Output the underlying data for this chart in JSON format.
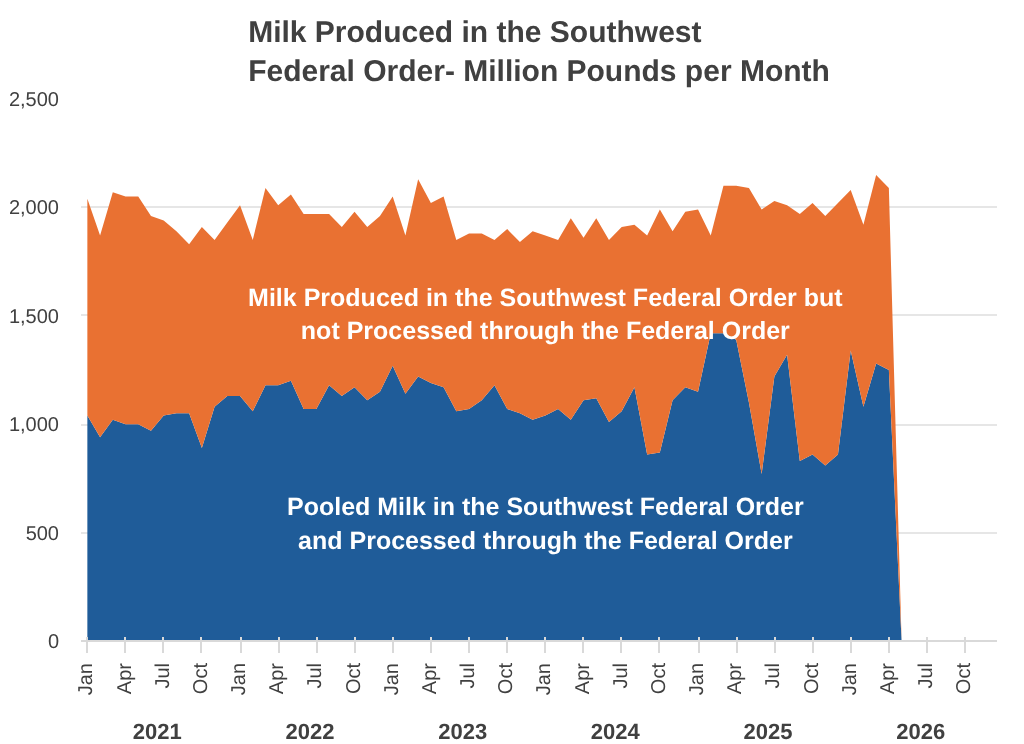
{
  "chart_data": {
    "type": "area",
    "stacked": true,
    "title": "Milk Produced in the Southwest\nFederal Order- Million Pounds per Month",
    "x": [
      "2021-01",
      "2021-02",
      "2021-03",
      "2021-04",
      "2021-05",
      "2021-06",
      "2021-07",
      "2021-08",
      "2021-09",
      "2021-10",
      "2021-11",
      "2021-12",
      "2022-01",
      "2022-02",
      "2022-03",
      "2022-04",
      "2022-05",
      "2022-06",
      "2022-07",
      "2022-08",
      "2022-09",
      "2022-10",
      "2022-11",
      "2022-12",
      "2023-01",
      "2023-02",
      "2023-03",
      "2023-04",
      "2023-05",
      "2023-06",
      "2023-07",
      "2023-08",
      "2023-09",
      "2023-10",
      "2023-11",
      "2023-12",
      "2024-01",
      "2024-02",
      "2024-03",
      "2024-04",
      "2024-05",
      "2024-06",
      "2024-07",
      "2024-08",
      "2024-09",
      "2024-10",
      "2024-11",
      "2024-12",
      "2025-01",
      "2025-02",
      "2025-03",
      "2025-04",
      "2025-05",
      "2025-06",
      "2025-07",
      "2025-08",
      "2025-09",
      "2025-10",
      "2025-11",
      "2025-12",
      "2026-01",
      "2026-02",
      "2026-03",
      "2026-04",
      "2026-05"
    ],
    "series": [
      {
        "name": "Pooled Milk in the Southwest Federal Order\nand Processed through the Federal Order",
        "color": "#1f5c99",
        "values": [
          1040,
          940,
          1020,
          1000,
          1000,
          970,
          1040,
          1050,
          1050,
          890,
          1080,
          1130,
          1130,
          1060,
          1180,
          1180,
          1200,
          1070,
          1070,
          1180,
          1130,
          1170,
          1110,
          1150,
          1270,
          1140,
          1220,
          1190,
          1170,
          1060,
          1070,
          1110,
          1180,
          1070,
          1050,
          1020,
          1040,
          1070,
          1020,
          1110,
          1120,
          1010,
          1060,
          1170,
          860,
          870,
          1110,
          1170,
          1150,
          1420,
          1420,
          1390,
          1100,
          770,
          1220,
          1320,
          830,
          860,
          810,
          860,
          1340,
          1080,
          1280,
          1250,
          0
        ]
      },
      {
        "name": "Milk Produced in the Southwest Federal Order but\nnot Processed through the Federal Order",
        "color": "#e97132",
        "values": [
          1000,
          930,
          1050,
          1050,
          1050,
          990,
          900,
          840,
          780,
          1020,
          770,
          800,
          880,
          790,
          910,
          830,
          860,
          900,
          900,
          790,
          780,
          810,
          800,
          810,
          780,
          730,
          910,
          830,
          880,
          790,
          810,
          770,
          670,
          830,
          790,
          870,
          830,
          780,
          930,
          750,
          830,
          840,
          850,
          750,
          1010,
          1120,
          780,
          810,
          840,
          450,
          680,
          710,
          990,
          1220,
          810,
          690,
          1140,
          1160,
          1150,
          1160,
          740,
          840,
          870,
          840,
          0
        ]
      }
    ],
    "xlim": [
      "2020-12-16",
      "2026-12-16"
    ],
    "xticks": [
      {
        "value": "2021-01",
        "label": "Jan"
      },
      {
        "value": "2021-04",
        "label": "Apr"
      },
      {
        "value": "2021-07",
        "label": "Jul"
      },
      {
        "value": "2021-10",
        "label": "Oct"
      },
      {
        "value": "2022-01",
        "label": "Jan"
      },
      {
        "value": "2022-04",
        "label": "Apr"
      },
      {
        "value": "2022-07",
        "label": "Jul"
      },
      {
        "value": "2022-10",
        "label": "Oct"
      },
      {
        "value": "2023-01",
        "label": "Jan"
      },
      {
        "value": "2023-04",
        "label": "Apr"
      },
      {
        "value": "2023-07",
        "label": "Jul"
      },
      {
        "value": "2023-10",
        "label": "Oct"
      },
      {
        "value": "2024-01",
        "label": "Jan"
      },
      {
        "value": "2024-04",
        "label": "Apr"
      },
      {
        "value": "2024-07",
        "label": "Jul"
      },
      {
        "value": "2024-10",
        "label": "Oct"
      },
      {
        "value": "2025-01",
        "label": "Jan"
      },
      {
        "value": "2025-04",
        "label": "Apr"
      },
      {
        "value": "2025-07",
        "label": "Jul"
      },
      {
        "value": "2025-10",
        "label": "Oct"
      },
      {
        "value": "2026-01",
        "label": "Jan"
      },
      {
        "value": "2026-04",
        "label": "Apr"
      },
      {
        "value": "2026-07",
        "label": "Jul"
      },
      {
        "value": "2026-10",
        "label": "Oct"
      }
    ],
    "annotations": [
      "2021",
      "2022",
      "2023",
      "2024",
      "2025",
      "2026"
    ],
    "ylim": [
      0,
      2500
    ],
    "yticks": [
      {
        "value": 0,
        "label": "0"
      },
      {
        "value": 500,
        "label": "500"
      },
      {
        "value": 1000,
        "label": "1,000"
      },
      {
        "value": 1500,
        "label": "1,500"
      },
      {
        "value": 2000,
        "label": "2,000"
      },
      {
        "value": 2500,
        "label": "2,500"
      }
    ],
    "grid": "y"
  }
}
